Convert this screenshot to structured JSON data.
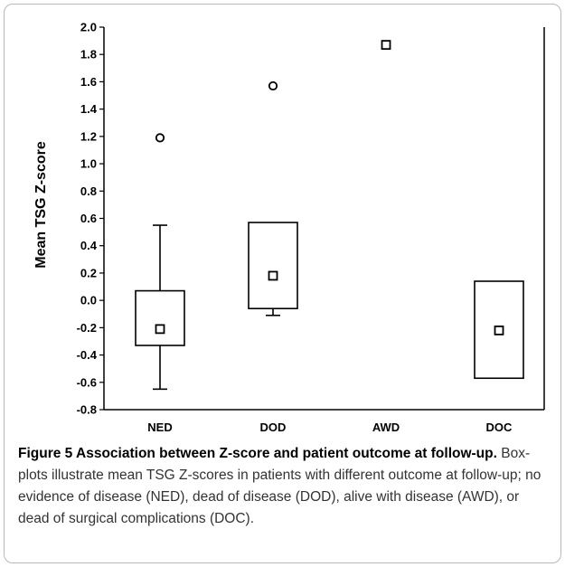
{
  "chart_data": {
    "type": "box",
    "ylabel": "Mean TSG Z-score",
    "xlabel": "",
    "ylim": [
      -0.8,
      2.0
    ],
    "yticks": [
      "2.0",
      "1.8",
      "1.6",
      "1.4",
      "1.2",
      "1.0",
      "0.8",
      "0.6",
      "0.4",
      "0.2",
      "0.0",
      "-0.2",
      "-0.4",
      "-0.6",
      "-0.8"
    ],
    "categories": [
      "NED",
      "DOD",
      "AWD",
      "DOC"
    ],
    "groups": [
      {
        "category": "NED",
        "q1": -0.33,
        "q3": 0.07,
        "median": -0.21,
        "whisker_low": -0.65,
        "whisker_high": 0.55,
        "outliers": [
          1.19
        ]
      },
      {
        "category": "DOD",
        "q1": -0.06,
        "q3": 0.57,
        "median": 0.18,
        "whisker_low": -0.11,
        "whisker_high": 0.57,
        "outliers": [
          1.57
        ]
      },
      {
        "category": "AWD",
        "median": 1.87,
        "outliers": []
      },
      {
        "category": "DOC",
        "q1": -0.57,
        "q3": 0.14,
        "median": -0.22,
        "whisker_low": -0.57,
        "whisker_high": 0.14,
        "outliers": []
      }
    ]
  },
  "caption": {
    "title": "Figure 5 Association between Z-score and patient outcome at follow-up.",
    "text": " Box-plots illustrate mean TSG Z-scores in patients with different outcome at follow-up; no evidence of disease (NED), dead of disease (DOD), alive with disease (AWD), or dead of surgical complications (DOC)."
  },
  "colors": {
    "ink": "#000000",
    "caption_text": "#333333",
    "frame": "#b8b8b8"
  }
}
